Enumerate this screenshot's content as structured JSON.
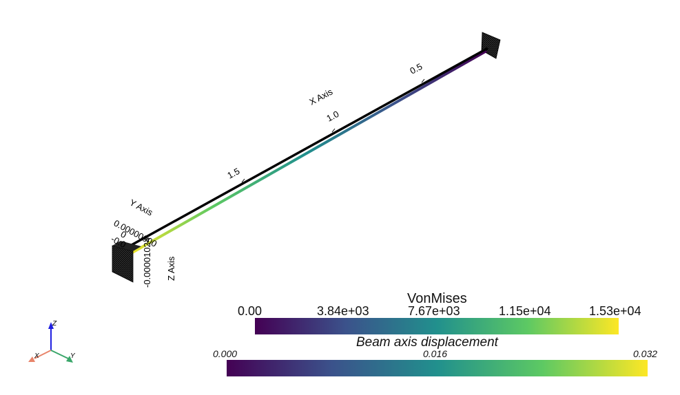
{
  "scene": {
    "x_axis": {
      "title": "X Axis",
      "ticks": [
        "0.5",
        "1.0",
        "1.5"
      ]
    },
    "y_axis": {
      "title": "Y Axis",
      "ticks": [
        "0"
      ]
    },
    "z_axis": {
      "title": "Z Axis"
    },
    "orientation": {
      "x": "X",
      "y": "Y",
      "z": "Z"
    }
  },
  "colorbars": {
    "vonmises": {
      "title": "VonMises",
      "ticks": [
        "0.00",
        "3.84e+03",
        "7.67e+03",
        "1.15e+04",
        "1.53e+04"
      ]
    },
    "displacement": {
      "title": "Beam axis displacement",
      "ticks": [
        "0.000",
        "0.016",
        "0.032"
      ]
    }
  },
  "colors": {
    "viridis": [
      "#440154",
      "#3b528b",
      "#21908d",
      "#5dc963",
      "#fde725"
    ],
    "axis_x_arrow": "#e8846a",
    "axis_y_arrow": "#3aa66a",
    "axis_z_arrow": "#1f1fe0"
  }
}
